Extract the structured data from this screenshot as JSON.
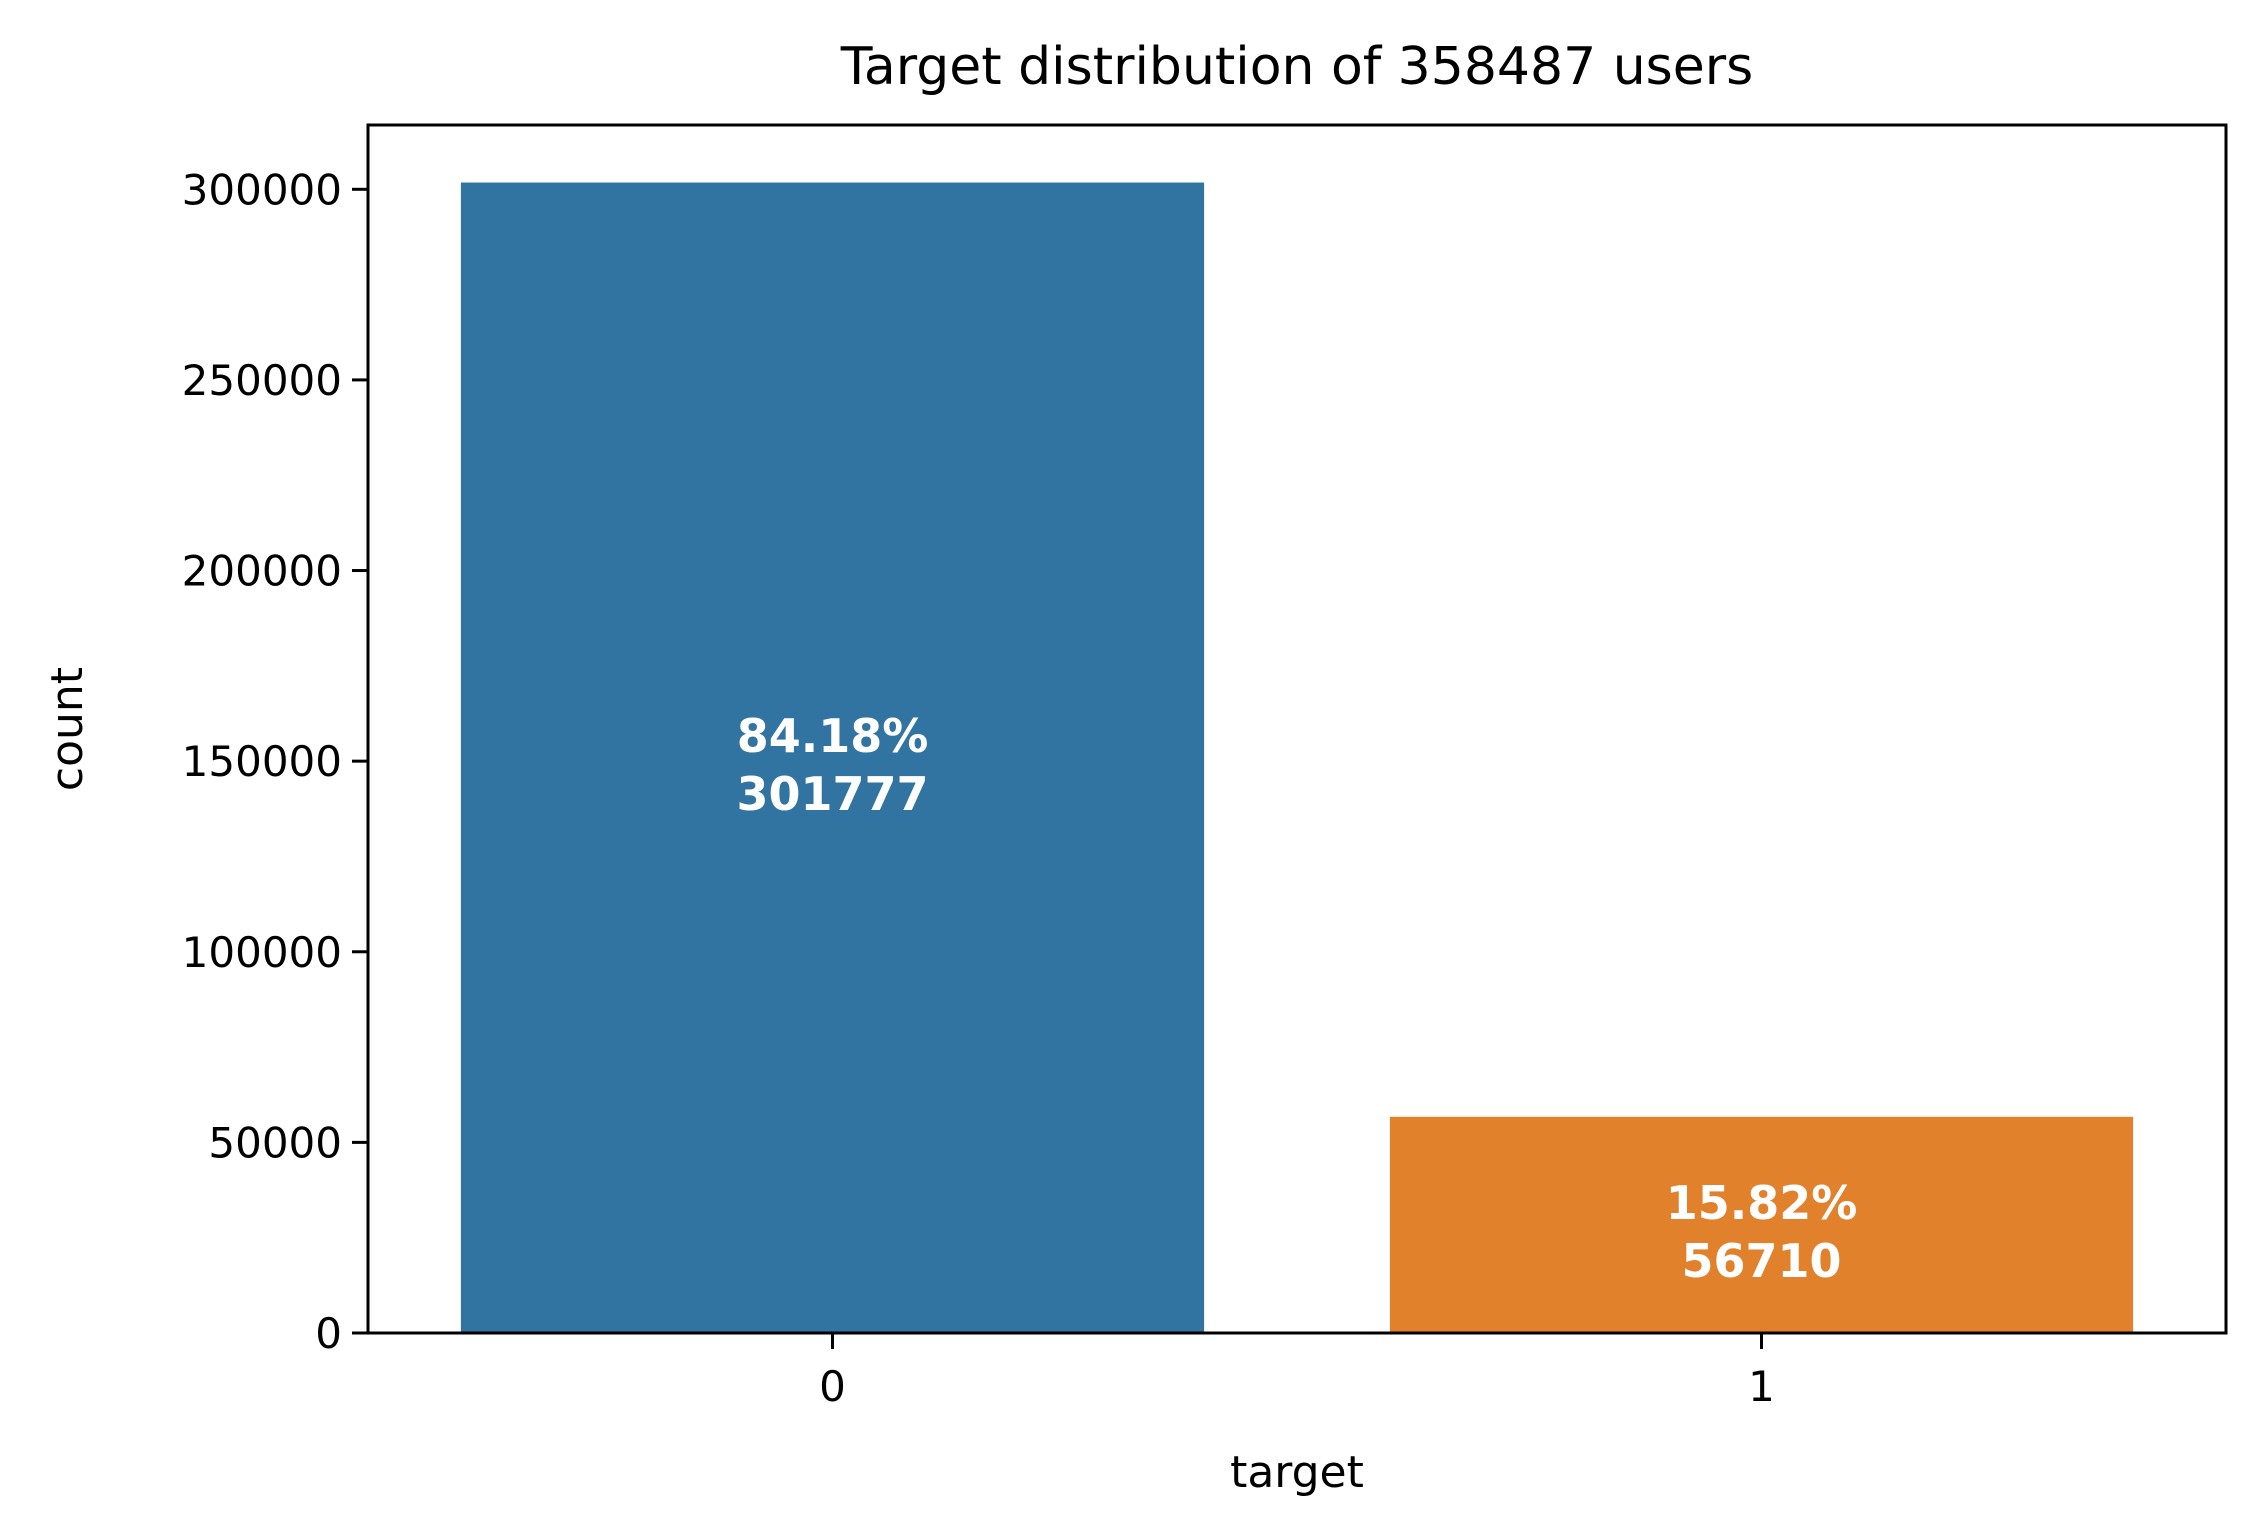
{
  "chart_data": {
    "type": "bar",
    "title": "Target distribution of 358487 users",
    "xlabel": "target",
    "ylabel": "count",
    "categories": [
      "0",
      "1"
    ],
    "values": [
      301777,
      56710
    ],
    "bar_labels": [
      {
        "percent": "84.18%",
        "count": "301777"
      },
      {
        "percent": "15.82%",
        "count": "56710"
      }
    ],
    "colors": [
      "#3274a1",
      "#e1812c"
    ],
    "yticks": [
      0,
      50000,
      100000,
      150000,
      200000,
      250000,
      300000
    ],
    "ytick_labels": [
      "0",
      "50000",
      "100000",
      "150000",
      "200000",
      "250000",
      "300000"
    ],
    "ylim": [
      0,
      316866
    ],
    "grid": false,
    "legend": "none"
  }
}
